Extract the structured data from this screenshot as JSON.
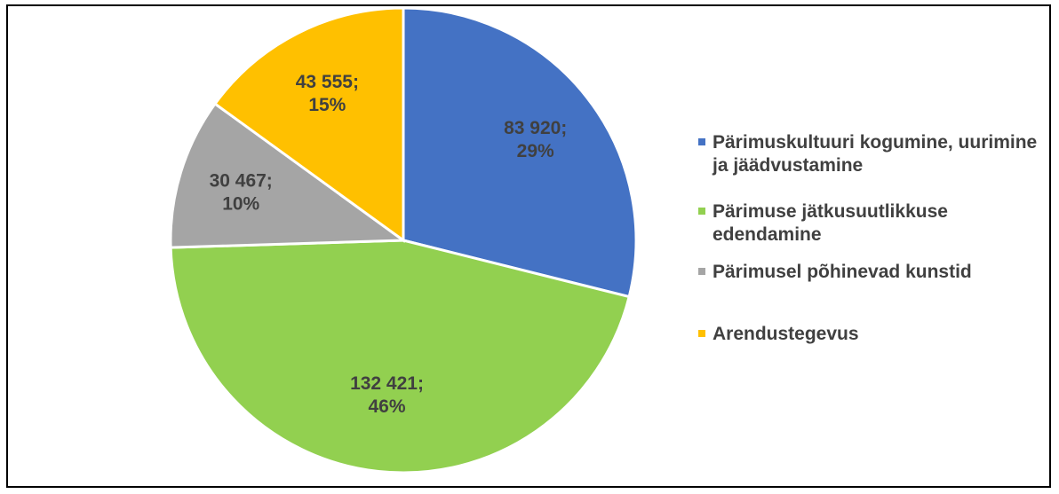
{
  "chart_data": {
    "type": "pie",
    "title": "",
    "legend_position": "right",
    "slices": [
      {
        "name": "Pärimuskultuuri kogumine, uurimine ja jäädvustamine",
        "value": 83920,
        "value_label": "83 920;",
        "percent_label": "29%",
        "color": "#4472C4"
      },
      {
        "name": "Pärimuse jätkusuutlikkuse edendamine",
        "value": 132421,
        "value_label": "132 421;",
        "percent_label": "46%",
        "color": "#92D050"
      },
      {
        "name": "Pärimusel põhinevad kunstid",
        "value": 30467,
        "value_label": "30 467;",
        "percent_label": "10%",
        "color": "#A5A5A5"
      },
      {
        "name": "Arendustegevus",
        "value": 43555,
        "value_label": "43 555;",
        "percent_label": "15%",
        "color": "#FFC000"
      }
    ]
  }
}
